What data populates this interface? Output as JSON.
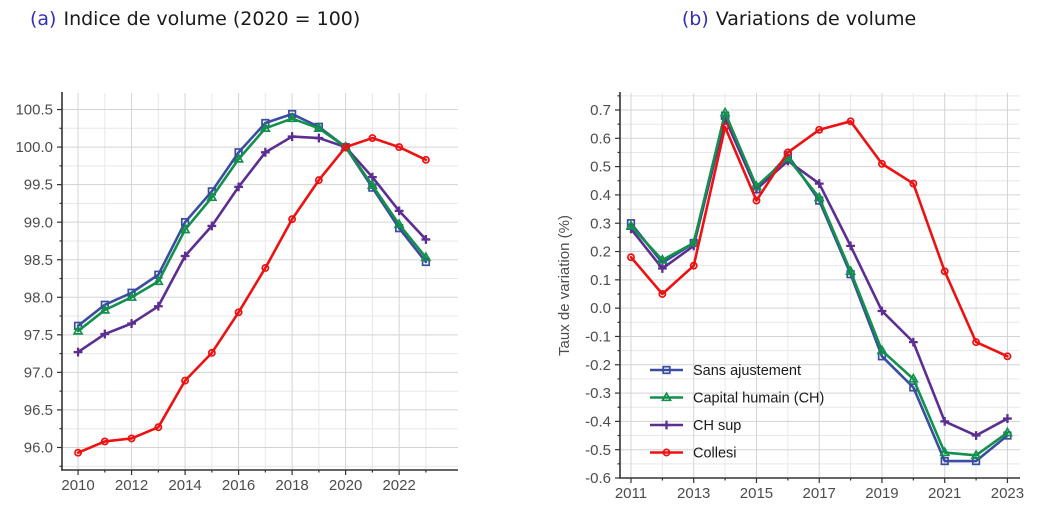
{
  "page": {
    "background": "#ffffff"
  },
  "colors": {
    "title_accent": "#3333B2",
    "title_text": "#1a1a1a",
    "axis_line": "#333333",
    "tick_label": "#4d4d4d",
    "grid_major": "#d3d3d3",
    "grid_minor": "#e8e8e8",
    "legend_text": "#1a1a1a",
    "series": {
      "sans_ajustement": "#3B4DA0",
      "capital_humain": "#11914B",
      "ch_sup": "#5D2E91",
      "collesi": "#EE1111"
    }
  },
  "chart_data": [
    {
      "id": "indice-volume",
      "type": "line",
      "title_prefix": "(a)",
      "title": "Indice de volume (2020 = 100)",
      "xlabel": "",
      "ylabel": "",
      "x": [
        2010,
        2011,
        2012,
        2013,
        2014,
        2015,
        2016,
        2017,
        2018,
        2019,
        2020,
        2021,
        2022,
        2023
      ],
      "x_labeled_ticks": [
        2010,
        2012,
        2014,
        2016,
        2018,
        2020,
        2022
      ],
      "xlim": [
        2009.4,
        2024.2
      ],
      "ylim": [
        95.7,
        100.72
      ],
      "y_labeled_ticks": [
        96.0,
        96.5,
        97.0,
        97.5,
        98.0,
        98.5,
        99.0,
        99.5,
        100.0,
        100.5
      ],
      "y_minor_step": 0.25,
      "grid": true,
      "legend": false,
      "series": [
        {
          "name": "Sans ajustement",
          "marker": "square",
          "color": "#3B4DA0",
          "values": [
            97.62,
            97.9,
            98.06,
            98.3,
            99.0,
            99.41,
            99.93,
            100.32,
            100.44,
            100.27,
            100.0,
            99.46,
            98.92,
            98.47
          ]
        },
        {
          "name": "CH sup",
          "marker": "plus",
          "color": "#5D2E91",
          "values": [
            97.27,
            97.51,
            97.65,
            97.88,
            98.55,
            98.95,
            99.47,
            99.93,
            100.14,
            100.12,
            100.0,
            99.6,
            99.15,
            98.77
          ]
        },
        {
          "name": "Capital humain (CH)",
          "marker": "triangle",
          "color": "#11914B",
          "values": [
            97.55,
            97.83,
            98.0,
            98.21,
            98.9,
            99.33,
            99.84,
            100.25,
            100.38,
            100.25,
            100.0,
            99.49,
            98.97,
            98.53
          ]
        },
        {
          "name": "Collesi",
          "marker": "circle",
          "color": "#EE1111",
          "values": [
            95.93,
            96.08,
            96.12,
            96.27,
            96.89,
            97.26,
            97.8,
            98.39,
            99.04,
            99.56,
            100.0,
            100.12,
            100.0,
            99.83
          ]
        }
      ]
    },
    {
      "id": "variations-volume",
      "type": "line",
      "title_prefix": "(b)",
      "title": "Variations de volume",
      "xlabel": "",
      "ylabel": "Taux de variation (%)",
      "x": [
        2011,
        2012,
        2013,
        2014,
        2015,
        2016,
        2017,
        2018,
        2019,
        2020,
        2021,
        2022,
        2023
      ],
      "x_labeled_ticks": [
        2011,
        2013,
        2015,
        2017,
        2019,
        2021,
        2023
      ],
      "xlim": [
        2010.65,
        2023.4
      ],
      "ylim": [
        -0.6,
        0.76
      ],
      "y_labeled_ticks": [
        -0.6,
        -0.5,
        -0.4,
        -0.3,
        -0.2,
        -0.1,
        0.0,
        0.1,
        0.2,
        0.3,
        0.4,
        0.5,
        0.6,
        0.7
      ],
      "y_minor_step": 0.05,
      "grid": true,
      "legend": true,
      "legend_order": [
        "Sans ajustement",
        "Capital humain (CH)",
        "CH sup",
        "Collesi"
      ],
      "series": [
        {
          "name": "Sans ajustement",
          "marker": "square",
          "color": "#3B4DA0",
          "values": [
            0.3,
            0.16,
            0.23,
            0.68,
            0.42,
            0.54,
            0.38,
            0.12,
            -0.17,
            -0.28,
            -0.54,
            -0.54,
            -0.45
          ]
        },
        {
          "name": "CH sup",
          "marker": "plus",
          "color": "#5D2E91",
          "values": [
            0.28,
            0.14,
            0.22,
            0.67,
            0.42,
            0.52,
            0.44,
            0.22,
            -0.01,
            -0.12,
            -0.4,
            -0.45,
            -0.39
          ]
        },
        {
          "name": "Capital humain (CH)",
          "marker": "triangle",
          "color": "#11914B",
          "values": [
            0.29,
            0.17,
            0.23,
            0.69,
            0.43,
            0.53,
            0.39,
            0.13,
            -0.15,
            -0.25,
            -0.51,
            -0.52,
            -0.44
          ]
        },
        {
          "name": "Collesi",
          "marker": "circle",
          "color": "#EE1111",
          "values": [
            0.18,
            0.05,
            0.15,
            0.64,
            0.38,
            0.55,
            0.63,
            0.66,
            0.51,
            0.44,
            0.13,
            -0.12,
            -0.17
          ]
        }
      ]
    }
  ]
}
